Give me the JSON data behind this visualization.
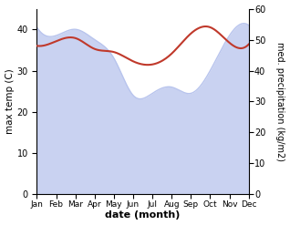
{
  "months": [
    "Jan",
    "Feb",
    "Mar",
    "Apr",
    "May",
    "Jun",
    "Jul",
    "Aug",
    "Sep",
    "Oct",
    "Nov",
    "Dec"
  ],
  "max_temp": [
    40.5,
    38.5,
    40.0,
    37.5,
    33.0,
    24.0,
    24.5,
    26.0,
    24.5,
    30.0,
    38.5,
    41.0
  ],
  "med_precip": [
    48.0,
    49.5,
    50.5,
    47.0,
    46.0,
    43.0,
    42.0,
    45.5,
    52.0,
    54.0,
    49.0,
    48.5
  ],
  "temp_fill_color": "#b8c4ed",
  "precip_color": "#c0392b",
  "temp_ylim": [
    0,
    45
  ],
  "precip_ylim": [
    0,
    60
  ],
  "xlabel": "date (month)",
  "ylabel_left": "max temp (C)",
  "ylabel_right": "med. precipitation (kg/m2)",
  "temp_yticks": [
    0,
    10,
    20,
    30,
    40
  ],
  "precip_yticks": [
    0,
    10,
    20,
    30,
    40,
    50,
    60
  ],
  "bg_color": "#ffffff"
}
